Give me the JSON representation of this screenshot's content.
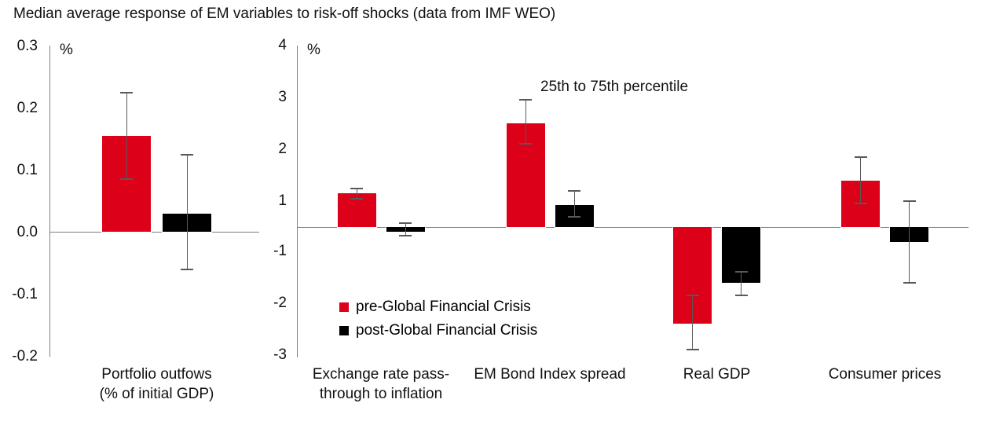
{
  "title": "Median average response of EM variables to risk-off shocks (data from IMF WEO)",
  "colors": {
    "pre_gfc": "#dc0018",
    "post_gfc": "#000000",
    "axis": "#808080",
    "whisker": "#595959",
    "text": "#111111"
  },
  "legend": [
    {
      "name": "pre-Global Financial Crisis",
      "color": "#dc0018"
    },
    {
      "name": "post-Global Financial Crisis",
      "color": "#000000"
    }
  ],
  "chart_data": [
    {
      "type": "bar",
      "title": "",
      "ylabel": "%",
      "ylim": [
        -0.2,
        0.3
      ],
      "yticks": [
        0.3,
        0.2,
        0.1,
        0.0,
        -0.1,
        -0.2
      ],
      "ytick_labels": [
        "0.3",
        "0.2",
        "0.1",
        "0.0",
        "-0.1",
        "-0.2"
      ],
      "grid": false,
      "categories": [
        "Portfolio outfows\n(% of initial GDP)"
      ],
      "series": [
        {
          "name": "pre-Global Financial Crisis",
          "values": [
            0.155
          ],
          "whisker_low": [
            0.085
          ],
          "whisker_high": [
            0.225
          ]
        },
        {
          "name": "post-Global Financial Crisis",
          "values": [
            0.03
          ],
          "whisker_low": [
            -0.06
          ],
          "whisker_high": [
            0.125
          ]
        }
      ],
      "error_bar_meaning": "25th to 75th percentile"
    },
    {
      "type": "bar",
      "title": "",
      "ylabel": "%",
      "ylim": [
        -3,
        4
      ],
      "yticks": [
        4,
        3,
        2,
        1,
        -1,
        -2,
        -3
      ],
      "ytick_labels": [
        "4",
        "3",
        "2",
        "1",
        "-1",
        "-2",
        "-3"
      ],
      "grid": false,
      "annotation": "25th to 75th percentile",
      "categories": [
        "Exchange rate pass-\nthrough to inflation",
        "EM Bond Index spread",
        "Real GDP",
        "Consumer prices"
      ],
      "series": [
        {
          "name": "pre-Global Financial Crisis",
          "values": [
            1.15,
            2.5,
            -2.4,
            1.4
          ],
          "whisker_low": [
            1.05,
            2.1,
            -2.9,
            0.9
          ],
          "whisker_high": [
            1.25,
            2.95,
            -1.85,
            1.85
          ]
        },
        {
          "name": "post-Global Financial Crisis",
          "values": [
            -0.2,
            0.85,
            -1.6,
            -0.6
          ],
          "whisker_low": [
            -0.35,
            0.4,
            -1.85,
            -1.6
          ],
          "whisker_high": [
            0.15,
            1.2,
            -1.4,
            1.0
          ]
        }
      ],
      "error_bar_meaning": "25th to 75th percentile"
    }
  ]
}
